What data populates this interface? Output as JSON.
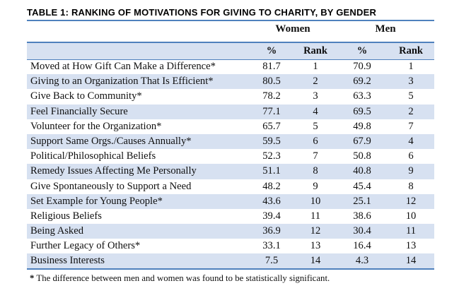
{
  "colors": {
    "accent": "#4F81BD",
    "band": "#D7E1F1",
    "text": "#0f0f0f"
  },
  "document": {
    "title": "TABLE 1: RANKING OF MOTIVATIONS FOR GIVING TO CHARITY, BY GENDER",
    "footnote_marker": "*",
    "footnote_text": "The difference between men and women was found to be statistically significant."
  },
  "table": {
    "group_headers": [
      "Women",
      "Men"
    ],
    "column_headers": [
      "%",
      "Rank",
      "%",
      "Rank"
    ],
    "rows": [
      {
        "label": "Moved at How Gift Can Make a Difference*",
        "women_pct": "81.7",
        "women_rank": "1",
        "men_pct": "70.9",
        "men_rank": "1"
      },
      {
        "label": "Giving to an Organization That Is Efficient*",
        "women_pct": "80.5",
        "women_rank": "2",
        "men_pct": "69.2",
        "men_rank": "3"
      },
      {
        "label": "Give Back to Community*",
        "women_pct": "78.2",
        "women_rank": "3",
        "men_pct": "63.3",
        "men_rank": "5"
      },
      {
        "label": "Feel Financially Secure",
        "women_pct": "77.1",
        "women_rank": "4",
        "men_pct": "69.5",
        "men_rank": "2"
      },
      {
        "label": "Volunteer for the Organization*",
        "women_pct": "65.7",
        "women_rank": "5",
        "men_pct": "49.8",
        "men_rank": "7"
      },
      {
        "label": "Support Same Orgs./Causes Annually*",
        "women_pct": "59.5",
        "women_rank": "6",
        "men_pct": "67.9",
        "men_rank": "4"
      },
      {
        "label": "Political/Philosophical Beliefs",
        "women_pct": "52.3",
        "women_rank": "7",
        "men_pct": "50.8",
        "men_rank": "6"
      },
      {
        "label": "Remedy Issues Affecting Me Personally",
        "women_pct": "51.1",
        "women_rank": "8",
        "men_pct": "40.8",
        "men_rank": "9"
      },
      {
        "label": "Give Spontaneously to Support a Need",
        "women_pct": "48.2",
        "women_rank": "9",
        "men_pct": "45.4",
        "men_rank": "8"
      },
      {
        "label": "Set Example for Young People*",
        "women_pct": "43.6",
        "women_rank": "10",
        "men_pct": "25.1",
        "men_rank": "12"
      },
      {
        "label": "Religious Beliefs",
        "women_pct": "39.4",
        "women_rank": "11",
        "men_pct": "38.6",
        "men_rank": "10"
      },
      {
        "label": "Being Asked",
        "women_pct": "36.9",
        "women_rank": "12",
        "men_pct": "30.4",
        "men_rank": "11"
      },
      {
        "label": "Further Legacy of Others*",
        "women_pct": "33.1",
        "women_rank": "13",
        "men_pct": "16.4",
        "men_rank": "13"
      },
      {
        "label": "Business Interests",
        "women_pct": "7.5",
        "women_rank": "14",
        "men_pct": "4.3",
        "men_rank": "14"
      }
    ]
  }
}
